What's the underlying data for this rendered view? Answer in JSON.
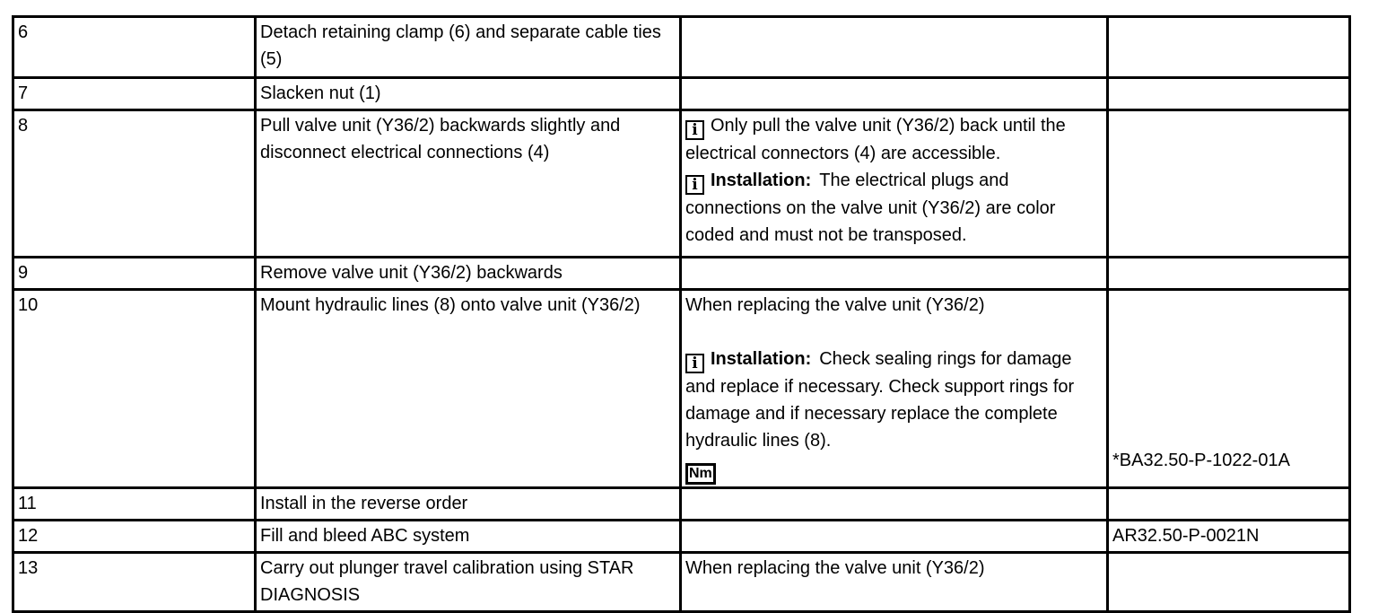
{
  "page": {
    "background_color": "#ffffff",
    "border_color": "#000000",
    "text_color": "#000000"
  },
  "icons": {
    "info": "i",
    "nm": "Nm"
  },
  "table": {
    "rows": [
      {
        "step": "6",
        "action": "Detach retaining clamp (6) and separate cable ties (5)",
        "note": [],
        "ref": ""
      },
      {
        "step": "7",
        "action": "Slacken nut (1)",
        "note": [],
        "ref": ""
      },
      {
        "step": "8",
        "action": "Pull valve unit (Y36/2) backwards slightly and disconnect electrical connections (4)",
        "note": [
          [
            {
              "icon": "info"
            },
            {
              "text": "Only pull the valve unit (Y36/2) back until the electrical connectors (4) are accessible."
            }
          ],
          [
            {
              "icon": "info"
            },
            {
              "bold": "Installation:"
            },
            {
              "text": "The electrical plugs and connections on the valve unit (Y36/2) are color coded and must not be transposed."
            }
          ]
        ],
        "ref": ""
      },
      {
        "step": "9",
        "action": "Remove valve unit (Y36/2) backwards",
        "note": [],
        "ref": ""
      },
      {
        "step": "10",
        "action": "Mount hydraulic lines (8) onto valve unit (Y36/2)",
        "note": [
          [
            {
              "text": "When replacing the valve unit (Y36/2)"
            }
          ],
          [
            {
              "blank": true
            }
          ],
          [
            {
              "icon": "info"
            },
            {
              "bold": "Installation:"
            },
            {
              "text": "Check sealing rings for damage and replace if necessary. Check support rings for damage and if necessary replace the complete hydraulic lines (8)."
            }
          ],
          [
            {
              "icon": "nm"
            }
          ]
        ],
        "ref": "*BA32.50-P-1022-01A",
        "ref_align": "bottom"
      },
      {
        "step": "11",
        "action": "Install in the reverse order",
        "note": [],
        "ref": ""
      },
      {
        "step": "12",
        "action": "Fill and bleed ABC system",
        "note": [],
        "ref": "AR32.50-P-0021N"
      },
      {
        "step": "13",
        "action": "Carry out plunger travel calibration using STAR DIAGNOSIS",
        "note": [
          [
            {
              "text": "When replacing the valve unit (Y36/2)"
            }
          ]
        ],
        "ref": ""
      }
    ]
  }
}
